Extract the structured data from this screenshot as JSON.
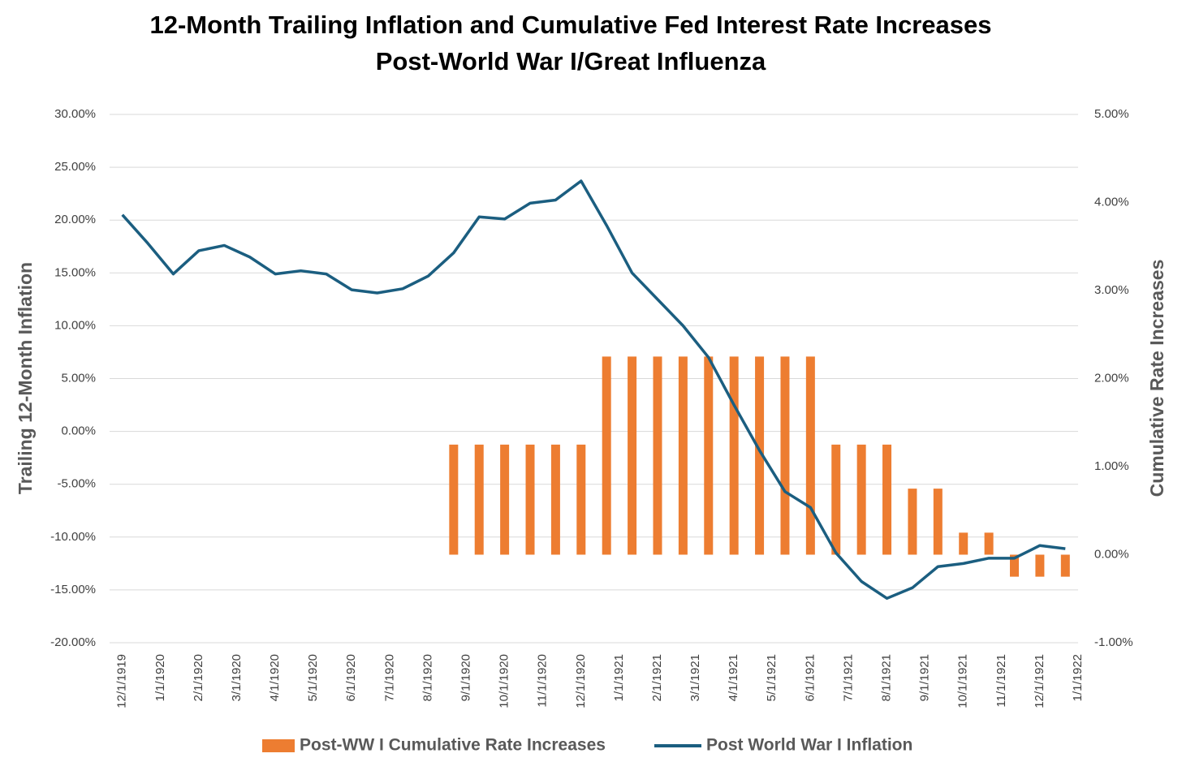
{
  "chart_data": {
    "type": "bar-line",
    "title": [
      "12-Month Trailing Inflation and Cumulative Fed Interest Rate Increases",
      "Post-World War I/Great Influenza"
    ],
    "y_label": "Trailing 12-Month Inflation",
    "y2_label": "Cumulative Rate Increases",
    "x": [
      0,
      1,
      2,
      3,
      4,
      5,
      6,
      7,
      8,
      9,
      10,
      11,
      12,
      13,
      14,
      15,
      16,
      17,
      18,
      19,
      20,
      21,
      22,
      23,
      24,
      25,
      26,
      27,
      28,
      29,
      30,
      31,
      32,
      33,
      34,
      35,
      36,
      37
    ],
    "xlim": [
      -0.5,
      37.5
    ],
    "xticks": [
      {
        "value": 0,
        "label": "12/1/1919"
      },
      {
        "value": 1.5,
        "label": "1/1/1920"
      },
      {
        "value": 3,
        "label": "2/1/1920"
      },
      {
        "value": 4.5,
        "label": "3/1/1920"
      },
      {
        "value": 6,
        "label": "4/1/1920"
      },
      {
        "value": 7.5,
        "label": "5/1/1920"
      },
      {
        "value": 9,
        "label": "6/1/1920"
      },
      {
        "value": 10.5,
        "label": "7/1/1920"
      },
      {
        "value": 12,
        "label": "8/1/1920"
      },
      {
        "value": 13.5,
        "label": "9/1/1920"
      },
      {
        "value": 15,
        "label": "10/1/1920"
      },
      {
        "value": 16.5,
        "label": "11/1/1920"
      },
      {
        "value": 18,
        "label": "12/1/1920"
      },
      {
        "value": 19.5,
        "label": "1/1/1921"
      },
      {
        "value": 21,
        "label": "2/1/1921"
      },
      {
        "value": 22.5,
        "label": "3/1/1921"
      },
      {
        "value": 24,
        "label": "4/1/1921"
      },
      {
        "value": 25.5,
        "label": "5/1/1921"
      },
      {
        "value": 27,
        "label": "6/1/1921"
      },
      {
        "value": 28.5,
        "label": "7/1/1921"
      },
      {
        "value": 30,
        "label": "8/1/1921"
      },
      {
        "value": 31.5,
        "label": "9/1/1921"
      },
      {
        "value": 33,
        "label": "10/1/1921"
      },
      {
        "value": 34.5,
        "label": "11/1/1921"
      },
      {
        "value": 36,
        "label": "12/1/1921"
      },
      {
        "value": 37.5,
        "label": "1/1/1922"
      }
    ],
    "ylim": [
      -20,
      30
    ],
    "yticks": [
      {
        "value": 30,
        "label": "30.00%"
      },
      {
        "value": 25,
        "label": "25.00%"
      },
      {
        "value": 20,
        "label": "20.00%"
      },
      {
        "value": 15,
        "label": "15.00%"
      },
      {
        "value": 10,
        "label": "10.00%"
      },
      {
        "value": 5,
        "label": "5.00%"
      },
      {
        "value": 0,
        "label": "0.00%"
      },
      {
        "value": -5,
        "label": "-5.00%"
      },
      {
        "value": -10,
        "label": "-10.00%"
      },
      {
        "value": -15,
        "label": "-15.00%"
      },
      {
        "value": -20,
        "label": "-20.00%"
      }
    ],
    "y2lim": [
      -1,
      5
    ],
    "y2ticks": [
      {
        "value": 5,
        "label": "5.00%"
      },
      {
        "value": 4,
        "label": "4.00%"
      },
      {
        "value": 3,
        "label": "3.00%"
      },
      {
        "value": 2,
        "label": "2.00%"
      },
      {
        "value": 1,
        "label": "1.00%"
      },
      {
        "value": 0,
        "label": "0.00%"
      },
      {
        "value": -1,
        "label": "-1.00%"
      }
    ],
    "grid": true,
    "legend": "bottom",
    "series": [
      {
        "name": "Post-WW I Cumulative Rate Increases",
        "type": "bar",
        "axis": "y2",
        "color": "#ED7D31",
        "values": [
          null,
          null,
          null,
          null,
          null,
          null,
          null,
          null,
          null,
          null,
          null,
          null,
          null,
          1.25,
          1.25,
          1.25,
          1.25,
          1.25,
          1.25,
          2.25,
          2.25,
          2.25,
          2.25,
          2.25,
          2.25,
          2.25,
          2.25,
          2.25,
          1.25,
          1.25,
          1.25,
          0.75,
          0.75,
          0.25,
          0.25,
          -0.25,
          -0.25,
          -0.25
        ]
      },
      {
        "name": "Post World War I Inflation",
        "type": "line",
        "color": "#1B5E80",
        "values": [
          20.5,
          17.8,
          14.9,
          17.1,
          17.6,
          16.5,
          14.9,
          15.2,
          14.9,
          13.4,
          13.1,
          13.5,
          14.7,
          16.9,
          20.3,
          20.1,
          21.6,
          21.9,
          23.7,
          19.5,
          15.0,
          12.5,
          10.0,
          7.0,
          2.5,
          -1.8,
          -5.7,
          -7.2,
          -11.5,
          -14.2,
          -15.8,
          -14.8,
          -12.8,
          -12.5,
          -12.0,
          -12.0,
          -10.8,
          -11.1
        ]
      }
    ]
  }
}
